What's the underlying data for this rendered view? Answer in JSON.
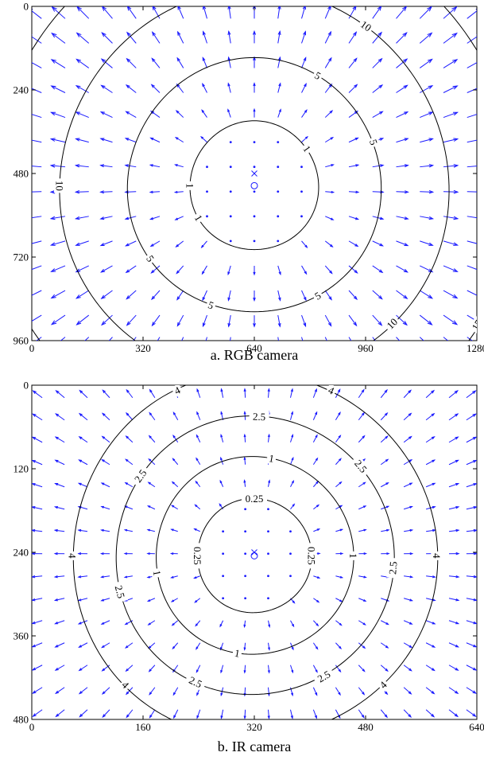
{
  "colors": {
    "vector": "#1a1aff",
    "contour": "#000000",
    "axes": "#000000"
  },
  "chart_data": [
    {
      "type": "quiver_contour",
      "caption": "a. RGB camera",
      "xlim": [
        0,
        1280
      ],
      "ylim": [
        0,
        960
      ],
      "y_reversed": true,
      "x_ticks": [
        0,
        320,
        640,
        960,
        1280
      ],
      "y_ticks": [
        0,
        240,
        480,
        720,
        960
      ],
      "principal_point": [
        640,
        515
      ],
      "image_center": [
        640,
        480
      ],
      "contours": [
        {
          "level": "1",
          "r": 185,
          "labels": [
            [
              -35,
              "1"
            ],
            [
              150,
              "1"
            ],
            [
              180,
              "1"
            ]
          ]
        },
        {
          "level": "5",
          "r": 365,
          "labels": [
            [
              -60,
              "5"
            ],
            [
              -20,
              "5"
            ],
            [
              60,
              "5"
            ],
            [
              110,
              "5"
            ],
            [
              145,
              "5"
            ]
          ]
        },
        {
          "level": "10",
          "r": 560,
          "labels": [
            [
              -85,
              "10"
            ],
            [
              -55,
              "10"
            ],
            [
              45,
              "10"
            ],
            [
              90,
              "10"
            ],
            [
              118,
              "10"
            ],
            [
              180,
              "10"
            ]
          ]
        },
        {
          "level": "15",
          "r": 755,
          "labels": [
            [
              -125,
              "15"
            ],
            [
              -25,
              "15"
            ],
            [
              32,
              "15"
            ],
            [
              130,
              "15"
            ],
            [
              160,
              "15"
            ]
          ]
        }
      ],
      "vector_grid": {
        "xs": [
          28,
          96,
          164,
          232,
          300,
          368,
          436,
          504,
          572,
          640,
          708,
          776,
          844,
          912,
          980,
          1048,
          1116,
          1184,
          1252
        ],
        "ys": [
          35,
          106,
          177,
          248,
          319,
          390,
          461,
          532,
          603,
          674,
          745,
          816,
          887,
          950
        ],
        "scale": 1.15
      }
    },
    {
      "type": "quiver_contour",
      "caption": "b. IR camera",
      "xlim": [
        0,
        640
      ],
      "ylim": [
        0,
        480
      ],
      "y_reversed": true,
      "x_ticks": [
        0,
        160,
        320,
        480,
        640
      ],
      "y_ticks": [
        0,
        120,
        240,
        360,
        480
      ],
      "principal_point": [
        320,
        245
      ],
      "image_center": [
        320,
        240
      ],
      "contours": [
        {
          "level": "0.25",
          "r": 82,
          "labels": [
            [
              -90,
              "0.25"
            ],
            [
              0,
              "0.25"
            ],
            [
              180,
              "0.25"
            ]
          ]
        },
        {
          "level": "1",
          "r": 142,
          "labels": [
            [
              -80,
              "1"
            ],
            [
              0,
              "1"
            ],
            [
              100,
              "1"
            ],
            [
              170,
              "1"
            ]
          ]
        },
        {
          "level": "2.5",
          "r": 200,
          "labels": [
            [
              -88,
              "2.5"
            ],
            [
              -40,
              "2.5"
            ],
            [
              5,
              "2.5"
            ],
            [
              60,
              "2.5"
            ],
            [
              115,
              "2.5"
            ],
            [
              165,
              "2.5"
            ],
            [
              -145,
              "2.5"
            ]
          ]
        },
        {
          "level": "4",
          "r": 262,
          "labels": [
            [
              -115,
              "4"
            ],
            [
              -65,
              "4"
            ],
            [
              0,
              "4"
            ],
            [
              45,
              "4"
            ],
            [
              135,
              "4"
            ],
            [
              180,
              "4"
            ]
          ]
        }
      ],
      "vector_grid": {
        "xs": [
          15,
          47,
          80,
          112,
          145,
          177,
          210,
          242,
          275,
          307,
          340,
          372,
          405,
          437,
          470,
          502,
          535,
          567,
          600,
          625
        ],
        "ys": [
          18,
          50,
          82,
          114,
          146,
          178,
          210,
          242,
          274,
          306,
          338,
          370,
          402,
          434,
          466
        ],
        "scale": 0.55
      }
    }
  ]
}
